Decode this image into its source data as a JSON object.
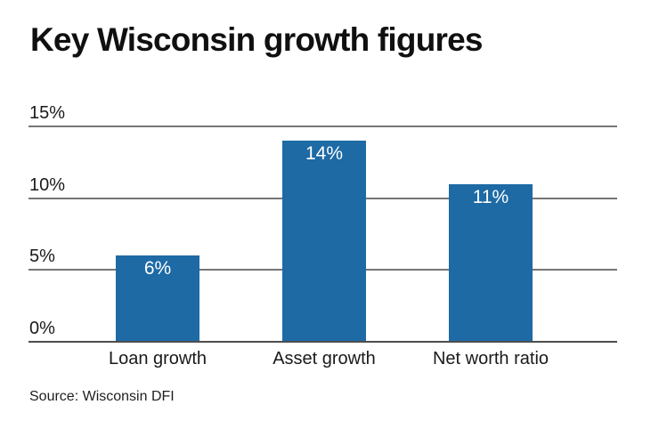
{
  "title": "Key Wisconsin growth figures",
  "source_note": "Source: Wisconsin DFI",
  "colors": {
    "bar": "#1d6aa5",
    "bar_value_text": "#ffffff",
    "gridline": "#767676",
    "baseline": "#4e4e4e",
    "text": "#1a1a1a",
    "background": "#ffffff"
  },
  "chart_data": {
    "type": "bar",
    "title": "Key Wisconsin growth figures",
    "categories": [
      "Loan growth",
      "Asset growth",
      "Net worth ratio"
    ],
    "values": [
      6,
      14,
      11
    ],
    "value_labels": [
      "6%",
      "14%",
      "11%"
    ],
    "xlabel": "",
    "ylabel": "",
    "ylim": [
      0,
      15
    ],
    "yticks": [
      0,
      5,
      10,
      15
    ],
    "ytick_labels": [
      "0%",
      "5%",
      "10%",
      "15%"
    ],
    "grid": true,
    "legend": false,
    "bar_label_position": "inside-top",
    "source": "Source: Wisconsin DFI"
  }
}
